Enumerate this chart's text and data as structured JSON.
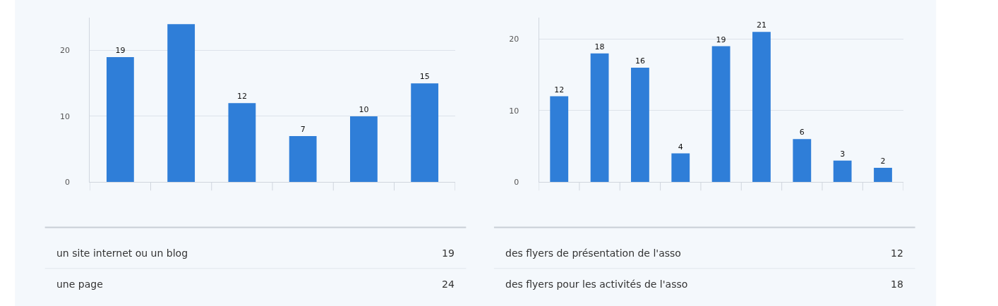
{
  "chart_data": [
    {
      "type": "bar",
      "categories": [
        null,
        null,
        null,
        null,
        null,
        null
      ],
      "values": [
        19,
        24,
        12,
        7,
        10,
        15
      ],
      "value_labels": [
        "19",
        null,
        "12",
        "7",
        "10",
        "15"
      ],
      "color": "#2f7ed8",
      "ylim": [
        0,
        25
      ],
      "yticks": [
        0,
        10,
        20
      ],
      "grid": "y",
      "tick_labels": "y",
      "annotations": [
        "un site internet ou un blog",
        "19",
        "une page",
        "24"
      ]
    },
    {
      "type": "bar",
      "categories": [
        null,
        null,
        null,
        null,
        null,
        null,
        null,
        null,
        null
      ],
      "values": [
        12,
        18,
        16,
        4,
        19,
        21,
        6,
        3,
        2
      ],
      "data_labels": true,
      "color": "#2f7ed8",
      "ylim": [
        0,
        23
      ],
      "yticks": [
        0,
        10,
        20
      ],
      "grid": "y",
      "tick_labels": "y",
      "annotations": [
        "des flyers de présentation de l'asso",
        "12",
        "des flyers pour les activités de l'asso",
        "18"
      ]
    }
  ]
}
